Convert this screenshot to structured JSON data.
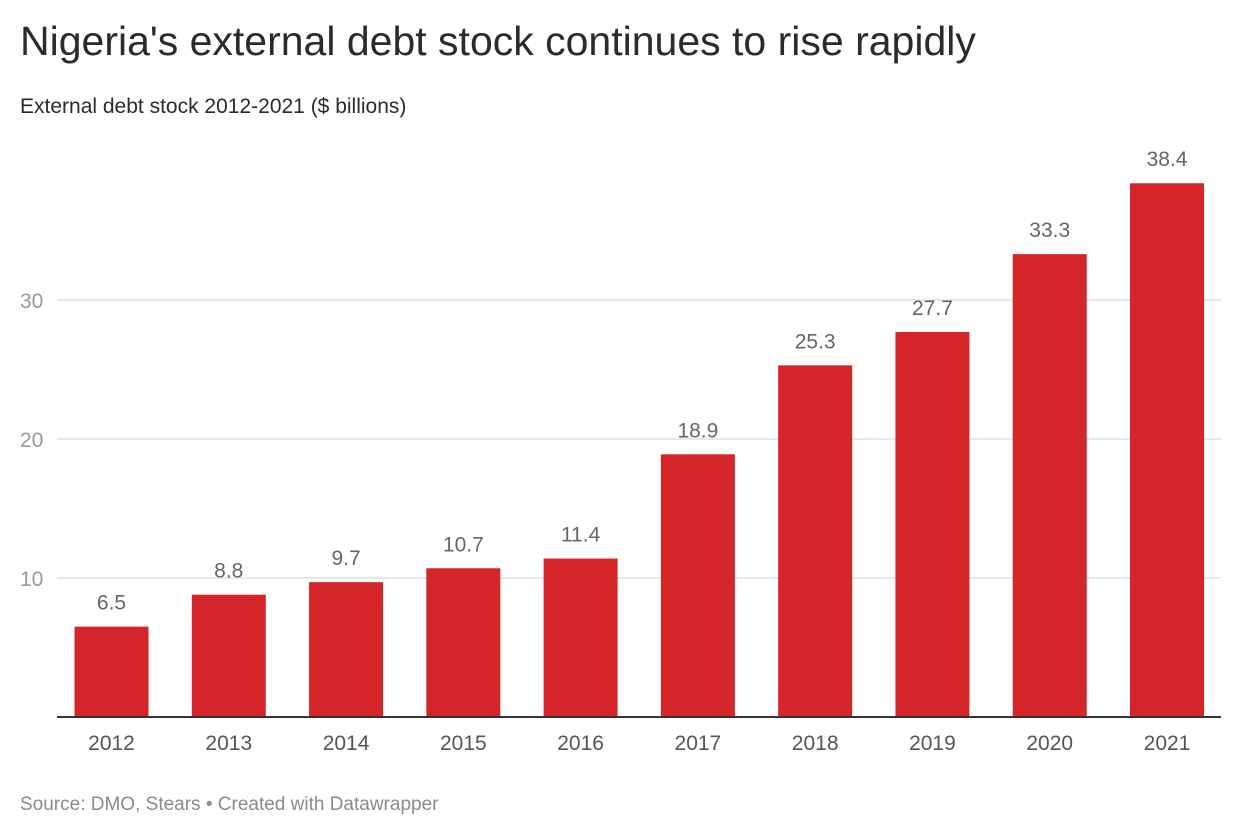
{
  "title": "Nigeria's external debt stock continues to rise rapidly",
  "subtitle": "External debt stock 2012-2021 ($ billions)",
  "footer": "Source: DMO, Stears • Created with Datawrapper",
  "colors": {
    "bar": "#d42628",
    "grid": "#e0e0e0",
    "axis": "#333333"
  },
  "chart_data": {
    "type": "bar",
    "categories": [
      "2012",
      "2013",
      "2014",
      "2015",
      "2016",
      "2017",
      "2018",
      "2019",
      "2020",
      "2021"
    ],
    "values": [
      6.5,
      8.8,
      9.7,
      10.7,
      11.4,
      18.9,
      25.3,
      27.7,
      33.3,
      38.4
    ],
    "data_labels": [
      "6.5",
      "8.8",
      "9.7",
      "10.7",
      "11.4",
      "18.9",
      "25.3",
      "27.7",
      "33.3",
      "38.4"
    ],
    "y_ticks": [
      10,
      20,
      30
    ],
    "y_tick_labels": [
      "10",
      "20",
      "30"
    ],
    "ylim": [
      0,
      40
    ],
    "grid": true,
    "legend": "none"
  }
}
